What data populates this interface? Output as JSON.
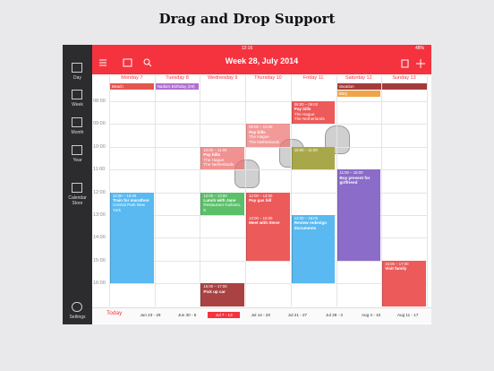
{
  "page_title": "Drag and Drop Support",
  "status": {
    "device": "iPad",
    "time": "12:16",
    "battery": "48%"
  },
  "sidebar": [
    "Day",
    "Week",
    "Month",
    "Year",
    "Calendar Store"
  ],
  "settings": "Settings",
  "header": {
    "title": "Week 28, July 2014"
  },
  "hours": [
    "08:00",
    "09:00",
    "10:00",
    "11:00",
    "12:00",
    "13:00",
    "14:00",
    "15:00",
    "16:00"
  ],
  "days": [
    {
      "name": "Monday 7",
      "all_day": [
        {
          "title": "Beach",
          "color": "#e4574f"
        }
      ],
      "events": [
        {
          "time": "12:00 – 16:00",
          "title": "Train for marathon",
          "lines": [
            "Central Park New York"
          ],
          "color": "#59b9f0"
        }
      ]
    },
    {
      "name": "Tuesday 8",
      "all_day": [
        {
          "title": "Nadia's Birthday (29)",
          "color": "#b06fd0"
        }
      ],
      "events": []
    },
    {
      "name": "Wednesday 9",
      "all_day": [],
      "events": [
        {
          "time": "10:00 – 11:00",
          "title": "Pay bills",
          "lines": [
            "The Hague",
            "The Netherlands"
          ],
          "color": "rgba(236,110,110,0.75)"
        },
        {
          "time": "12:00 – 13:00",
          "title": "Lunch with Jane",
          "lines": [
            "Restaurant Guiliano, K"
          ],
          "color": "#5cbf6a"
        },
        {
          "time": "16:00 – 17:00",
          "title": "Pick up car",
          "lines": [],
          "color": "#a94343"
        }
      ]
    },
    {
      "name": "Thursday 10",
      "all_day": [],
      "events": [
        {
          "time": "09:00 – 10:00",
          "title": "Pay bills",
          "lines": [
            "The Hague",
            "The Netherlands"
          ],
          "color": "rgba(236,110,110,0.7)"
        },
        {
          "time": "12:00 – 13:00",
          "title": "Pay gas bill",
          "lines": [],
          "color": "#ec5a5a"
        },
        {
          "time": "13:00 – 15:00",
          "title": "Meet with Steve",
          "lines": [],
          "color": "#ec5a5a"
        }
      ]
    },
    {
      "name": "Friday 11",
      "all_day": [],
      "events": [
        {
          "time": "08:00 – 09:00",
          "title": "Pay bills",
          "lines": [
            "The Hague",
            "The Netherlands"
          ],
          "color": "#ec5a5a"
        },
        {
          "time": "10:00 – 11:00",
          "title": "",
          "lines": [],
          "color": "#a8a84a"
        },
        {
          "time": "13:00 – 16:00",
          "title": "Review redesign documents",
          "lines": [],
          "color": "#59b9f0"
        }
      ]
    },
    {
      "name": "Saturday 12",
      "all_day": [
        {
          "title": "Vacation",
          "color": "#a33b3b"
        },
        {
          "title": "BBQ",
          "color": "#f0a448"
        }
      ],
      "events": [
        {
          "time": "11:00 – 15:00",
          "title": "Buy present for girlfriend",
          "lines": [],
          "color": "#8b6cc8"
        }
      ]
    },
    {
      "name": "Sunday 13",
      "all_day": [],
      "events": [
        {
          "time": "15:00 – 17:00",
          "title": "Visit family",
          "lines": [],
          "color": "#ec5a5a"
        }
      ]
    }
  ],
  "footer": {
    "today": "Today",
    "weeks": [
      {
        "label": "Jun 23 - 29"
      },
      {
        "label": "Jun 30 - 6"
      },
      {
        "label": "Jul 7 - 13",
        "selected": true
      },
      {
        "label": "Jul 14 - 20"
      },
      {
        "label": "Jul 21 - 27"
      },
      {
        "label": "Jul 28 - 3"
      },
      {
        "label": "Aug 4 - 10"
      },
      {
        "label": "Aug 11 - 17"
      }
    ]
  }
}
